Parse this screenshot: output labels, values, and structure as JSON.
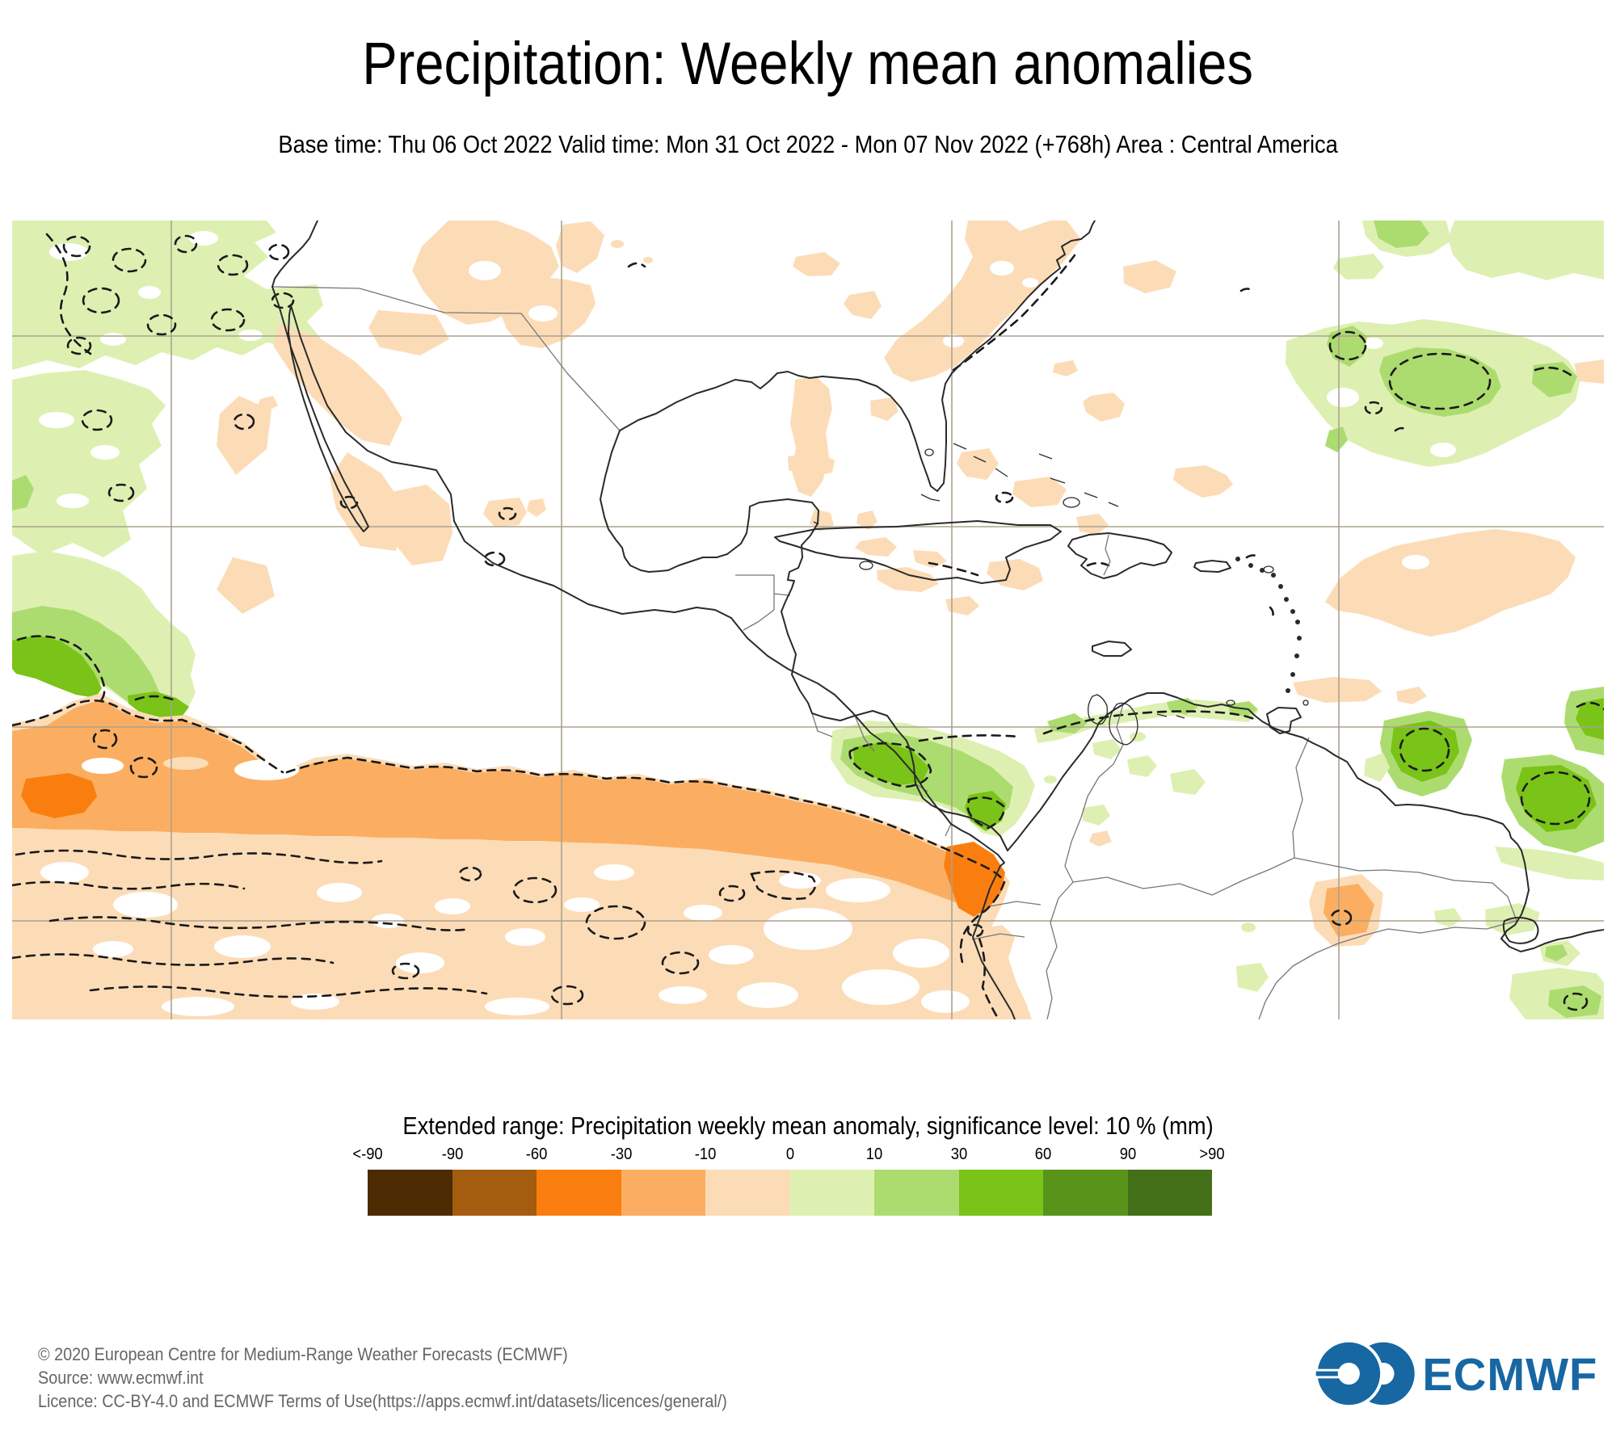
{
  "title": "Precipitation: Weekly mean anomalies",
  "subtitle": "Base time: Thu 06 Oct 2022 Valid time: Mon 31 Oct 2022 - Mon 07 Nov 2022 (+768h) Area : Central America",
  "legend": {
    "title": "Extended range: Precipitation weekly mean anomaly, significance level: 10 % (mm)",
    "tick_labels": [
      "<-90",
      "-90",
      "-60",
      "-30",
      "-10",
      "0",
      "10",
      "30",
      "60",
      "90",
      ">90"
    ],
    "colors": [
      "#4C2A02",
      "#A45C0F",
      "#FA7E0F",
      "#FBAE61",
      "#FCDCB7",
      "#DDF0B2",
      "#ACDC6F",
      "#7AC318",
      "#579419",
      "#45701A"
    ]
  },
  "map": {
    "gridline_color": "#ABA28F",
    "coastline_color": "#2A2A2A",
    "political_border_color": "#777777",
    "significance_contour_color": "#1A1A1A",
    "anomaly_colors": {
      "minus60_to_minus30": "#FA7E0F",
      "minus30_to_minus10": "#FBAE61",
      "minus10_to_0": "#FCDCB7",
      "0_to_10": "#DDF0B2",
      "10_to_30": "#ACDC6F",
      "30_to_60": "#7AC318"
    }
  },
  "footer": {
    "line1": "© 2020 European Centre for Medium-Range Weather Forecasts (ECMWF)",
    "line2": "Source: www.ecmwf.int",
    "line3": "Licence: CC-BY-4.0 and ECMWF Terms of Use(https://apps.ecmwf.int/datasets/licences/general/)"
  },
  "logo": {
    "text": "ECMWF",
    "color": "#1767A3"
  }
}
